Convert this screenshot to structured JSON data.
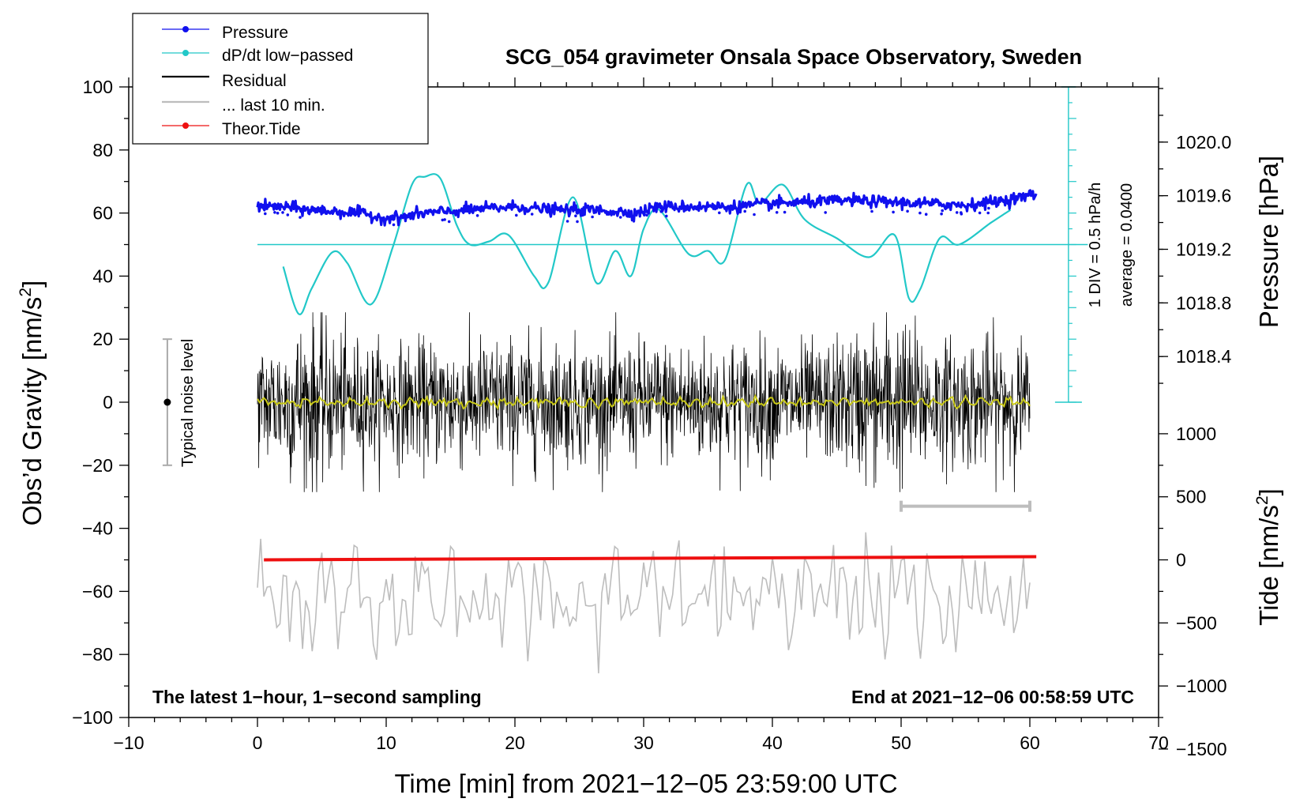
{
  "chart_data": {
    "type": "line",
    "title": "SCG_054 gravimeter Onsala Space Observatory, Sweden",
    "xlabel": "Time [min] from 2021−12−05 23:59:00 UTC",
    "xlim": [
      -10,
      70
    ],
    "x_ticks": [
      "−10",
      "0",
      "10",
      "20",
      "30",
      "40",
      "50",
      "60",
      "70"
    ],
    "left_axis": {
      "label_main": "Obs’d Gravity [nm/s",
      "label_sup": "2",
      "label_end": "]",
      "ylim": [
        -100,
        100
      ],
      "ticks": [
        "100",
        "80",
        "60",
        "40",
        "20",
        "0",
        "−20",
        "−40",
        "−60",
        "−80",
        "−100"
      ]
    },
    "pressure_axis": {
      "label": "Pressure [hPa]",
      "ticks": [
        "1020.0",
        "1019.6",
        "1019.2",
        "1018.8",
        "1018.4"
      ],
      "tick_values": [
        1020.0,
        1019.6,
        1019.2,
        1018.8,
        1018.4
      ],
      "gravity_of_1020": 82.5,
      "gravity_per_hpa": 42.5
    },
    "tide_axis": {
      "label_main": "Tide [nm/s",
      "label_sup": "2",
      "label_end": "]",
      "ticks": [
        "1000",
        "500",
        "0",
        "−500",
        "−1000",
        "−1500"
      ],
      "tick_values": [
        1000,
        500,
        0,
        -500,
        -1000,
        -1500
      ],
      "gravity_of_0": -50,
      "gravity_per_unit": 0.04
    },
    "legend": {
      "placement": "top-left",
      "entries": [
        {
          "label": "Pressure",
          "color": "#1010ee",
          "style": "line-dot"
        },
        {
          "label": "dP/dt low−passed",
          "color": "#22c8c8",
          "style": "line-dot"
        },
        {
          "label": "Residual",
          "color": "#000000",
          "style": "line"
        },
        {
          "label": "... last 10 min.",
          "color": "#bdbdbd",
          "style": "line"
        },
        {
          "label": "Theor.Tide",
          "color": "#ee1010",
          "style": "line-dot"
        }
      ]
    },
    "dpdt_scale": {
      "label": "1 DIV = 0.5 hPa/h",
      "average_label": "average = 0.0400",
      "baseline_gravity": 50,
      "x": 63,
      "y_range": [
        0,
        100
      ]
    },
    "noise_level": {
      "label": "Typical noise level",
      "x": -7,
      "center": 0,
      "range": [
        -20,
        20
      ]
    },
    "last10_marker": {
      "x_range": [
        50,
        60
      ],
      "gravity": -33
    },
    "annotations": {
      "bottom_left": "The latest 1−hour, 1−second sampling",
      "bottom_right": "End at 2021−12−06 00:58:59 UTC"
    },
    "series": [
      {
        "name": "Pressure",
        "color": "#1010ee",
        "unit": "nm/s2 on left axis",
        "x": [
          0,
          2,
          4,
          6,
          8,
          9.5,
          11,
          13,
          15,
          18,
          20,
          23,
          26,
          29.5,
          31,
          34,
          37,
          40,
          43,
          46,
          49,
          52,
          55,
          58,
          60.5
        ],
        "values": [
          62,
          62,
          61,
          60.5,
          60,
          58.5,
          58.5,
          60,
          60.5,
          61.5,
          62,
          61,
          61,
          60,
          62,
          62,
          62,
          63,
          63.5,
          64,
          63.5,
          63,
          62.5,
          64,
          66
        ]
      },
      {
        "name": "dP/dt low−passed",
        "color": "#22c8c8",
        "unit": "nm/s2 on left axis",
        "x": [
          2,
          3.2,
          4.2,
          5.8,
          7,
          8.8,
          10.5,
          12,
          13,
          14.2,
          15.5,
          16.5,
          18,
          19.5,
          21.5,
          22.6,
          24.5,
          26.3,
          27.8,
          29,
          30,
          31.2,
          33.5,
          35,
          36.3,
          38,
          39,
          40.8,
          42.5,
          45,
          47.5,
          49.5,
          50.6,
          51.5,
          53,
          54.5,
          57,
          58.5
        ],
        "values": [
          43,
          28,
          36,
          47.5,
          44,
          31,
          49,
          69,
          71.5,
          71,
          56,
          50,
          51,
          53,
          40,
          38,
          65,
          38,
          48,
          40,
          55,
          61,
          47,
          48,
          45,
          69,
          63,
          69,
          58,
          52,
          46,
          53,
          33,
          36,
          52,
          50,
          57,
          61
        ]
      },
      {
        "name": "Residual",
        "color": "#000000",
        "unit": "nm/s2",
        "x_range": [
          0,
          60
        ],
        "noise_amplitude": 12,
        "envelope_x": [
          0,
          4.5,
          6,
          10,
          13,
          15,
          22,
          26,
          30,
          35,
          40,
          44,
          48,
          49,
          53,
          58,
          60
        ],
        "envelope": [
          1.0,
          1.55,
          1.2,
          1.0,
          1.05,
          1.15,
          1.1,
          1.05,
          1.05,
          1.1,
          1.05,
          1.0,
          1.4,
          1.6,
          1.1,
          1.15,
          1.0
        ],
        "values_min": -28.5,
        "values_max": 28.5
      },
      {
        "name": "Residual smoothed",
        "color": "#c8c818",
        "unit": "nm/s2",
        "x_range": [
          0,
          60
        ],
        "values_range": [
          -2,
          2
        ]
      },
      {
        "name": "... last 10 min.",
        "color": "#bdbdbd",
        "unit": "nm/s2",
        "x_range": [
          0,
          60
        ],
        "baseline": -62,
        "values_min": -86,
        "values_max": -34
      },
      {
        "name": "Theor.Tide",
        "color": "#ee1010",
        "unit": "nm/s2 on left axis",
        "x": [
          0.5,
          60.5
        ],
        "values": [
          -50,
          -49
        ]
      }
    ]
  }
}
